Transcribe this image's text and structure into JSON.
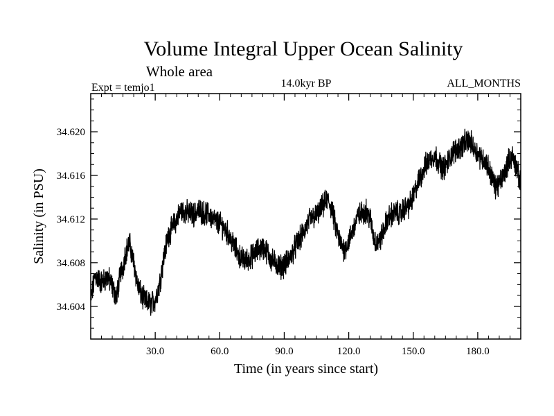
{
  "title": "Volume Integral Upper Ocean Salinity",
  "subtitle": "Whole area",
  "left_label": "Expt = temjo1",
  "center_label": "14.0kyr BP",
  "right_label": "ALL_MONTHS",
  "colors": {
    "line": "#000000",
    "background": "#ffffff",
    "frame": "#000000"
  },
  "chart_data": {
    "type": "line",
    "title": "Volume Integral Upper Ocean Salinity",
    "subtitle": "Whole area",
    "xlabel": "Time (in years since start)",
    "ylabel": "Salinity (in PSU)",
    "xlim": [
      0,
      200
    ],
    "ylim": [
      34.601,
      34.6235
    ],
    "x_ticks": [
      30,
      60,
      90,
      120,
      150,
      180
    ],
    "x_tick_labels": [
      "30.0",
      "60.0",
      "90.0",
      "120.0",
      "150.0",
      "180.0"
    ],
    "y_ticks": [
      34.604,
      34.608,
      34.612,
      34.616,
      34.62
    ],
    "y_tick_labels": [
      "34.604",
      "34.608",
      "34.612",
      "34.616",
      "34.620"
    ],
    "grid": false,
    "series": [
      {
        "name": "salinity",
        "x": [
          0,
          2,
          5,
          8,
          10,
          12,
          14,
          15,
          16,
          18,
          20,
          22,
          24,
          26,
          28,
          30,
          32,
          34,
          36,
          38,
          40,
          42,
          45,
          48,
          50,
          52,
          55,
          58,
          60,
          62,
          64,
          66,
          68,
          70,
          72,
          74,
          76,
          78,
          80,
          82,
          84,
          86,
          88,
          90,
          92,
          94,
          96,
          98,
          100,
          102,
          104,
          106,
          108,
          110,
          112,
          114,
          116,
          118,
          120,
          122,
          124,
          126,
          128,
          130,
          132,
          134,
          136,
          138,
          140,
          142,
          144,
          146,
          148,
          150,
          152,
          154,
          156,
          158,
          160,
          162,
          164,
          166,
          168,
          170,
          172,
          174,
          176,
          178,
          180,
          182,
          184,
          186,
          188,
          190,
          192,
          194,
          196,
          198,
          200
        ],
        "y": [
          34.6045,
          34.6068,
          34.6062,
          34.6067,
          34.6058,
          34.6048,
          34.6072,
          34.6075,
          34.6088,
          34.6098,
          34.608,
          34.6058,
          34.6048,
          34.6044,
          34.6042,
          34.6046,
          34.606,
          34.6085,
          34.6105,
          34.6112,
          34.612,
          34.6128,
          34.6126,
          34.6124,
          34.6128,
          34.6126,
          34.6124,
          34.6118,
          34.6116,
          34.6112,
          34.6106,
          34.6098,
          34.609,
          34.6084,
          34.6082,
          34.6084,
          34.6088,
          34.6092,
          34.6094,
          34.609,
          34.6082,
          34.608,
          34.6076,
          34.6078,
          34.6082,
          34.609,
          34.6098,
          34.6104,
          34.6112,
          34.612,
          34.6122,
          34.6125,
          34.6132,
          34.6138,
          34.613,
          34.6112,
          34.6098,
          34.6092,
          34.61,
          34.611,
          34.6122,
          34.6125,
          34.6128,
          34.612,
          34.61,
          34.6098,
          34.6108,
          34.612,
          34.6124,
          34.6126,
          34.6125,
          34.613,
          34.6132,
          34.614,
          34.6152,
          34.6162,
          34.617,
          34.6176,
          34.6178,
          34.6172,
          34.6166,
          34.6172,
          34.618,
          34.6184,
          34.6186,
          34.619,
          34.6192,
          34.6186,
          34.618,
          34.6176,
          34.6172,
          34.6162,
          34.615,
          34.6152,
          34.616,
          34.6172,
          34.6178,
          34.6168,
          34.615
        ]
      }
    ]
  }
}
